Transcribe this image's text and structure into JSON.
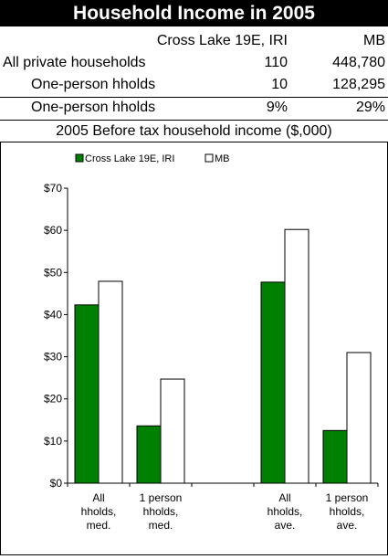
{
  "header": {
    "title": "Household Income in 2005",
    "col1": "Cross Lake 19E, IRI",
    "col2": "MB"
  },
  "table": {
    "rows": [
      {
        "label": "All private households",
        "v1": "110",
        "v2": "448,780"
      },
      {
        "label": "One-person hholds",
        "v1": "10",
        "v2": "128,295"
      },
      {
        "label": "One-person hholds",
        "v1": "9%",
        "v2": "29%"
      }
    ]
  },
  "chart_subtitle": "2005 Before tax household income ($,000)",
  "colors": {
    "series1": "#008000",
    "series2": "#ffffff"
  },
  "chart_data": {
    "type": "bar",
    "categories": [
      [
        "All",
        "hholds,",
        "med."
      ],
      [
        "1 person",
        "hholds,",
        "med."
      ],
      [
        "",
        "",
        ""
      ],
      [
        "All",
        "hholds,",
        "ave."
      ],
      [
        "1 person",
        "hholds,",
        "ave."
      ]
    ],
    "series": [
      {
        "name": "Cross Lake 19E, IRI",
        "values": [
          42.3,
          13.6,
          null,
          47.7,
          12.5
        ]
      },
      {
        "name": "MB",
        "values": [
          47.9,
          24.7,
          null,
          60.2,
          31.0
        ]
      }
    ],
    "ylim": [
      0,
      70
    ],
    "yticks": [
      "$0",
      "$10",
      "$20",
      "$30",
      "$40",
      "$50",
      "$60",
      "$70"
    ],
    "legend_position": "top"
  }
}
